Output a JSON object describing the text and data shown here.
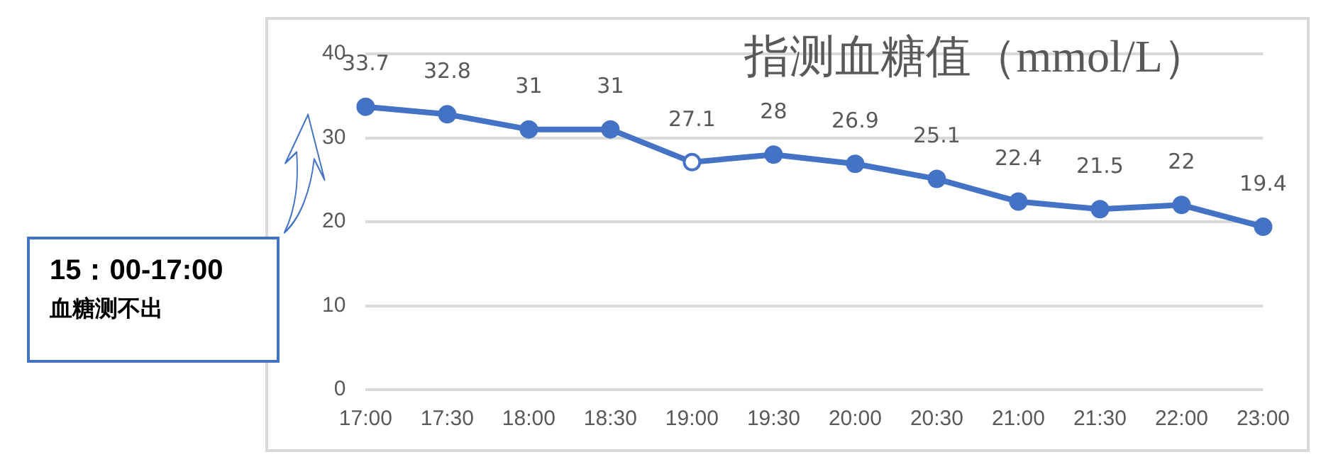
{
  "chart_data": {
    "type": "line",
    "title": "指测血糖值（mmol/L）",
    "categories": [
      "17:00",
      "17:30",
      "18:00",
      "18:30",
      "19:00",
      "19:30",
      "20:00",
      "20:30",
      "21:00",
      "21:30",
      "22:00",
      "23:00"
    ],
    "series": [
      {
        "color": "#4472c4",
        "values": [
          33.7,
          32.8,
          31,
          31,
          27.1,
          28,
          26.9,
          25.1,
          22.4,
          21.5,
          22,
          19.4
        ],
        "colors": [
          "#4472c4",
          "#4472c4",
          "#4472c4",
          "#4472c4",
          "#ffffff",
          "#4472c4",
          "#4472c4",
          "#4472c4",
          "#4472c4",
          "#4472c4",
          "#4472c4",
          "#4472c4"
        ]
      }
    ],
    "ylim": [
      0,
      40
    ],
    "yticks": [
      0,
      10,
      20,
      30,
      40
    ],
    "grid": "y",
    "legend": false,
    "marker": "circle",
    "line_style": "solid",
    "data_labels": true,
    "annotations": [
      "15：00-17:00\n血糖测不出"
    ]
  }
}
